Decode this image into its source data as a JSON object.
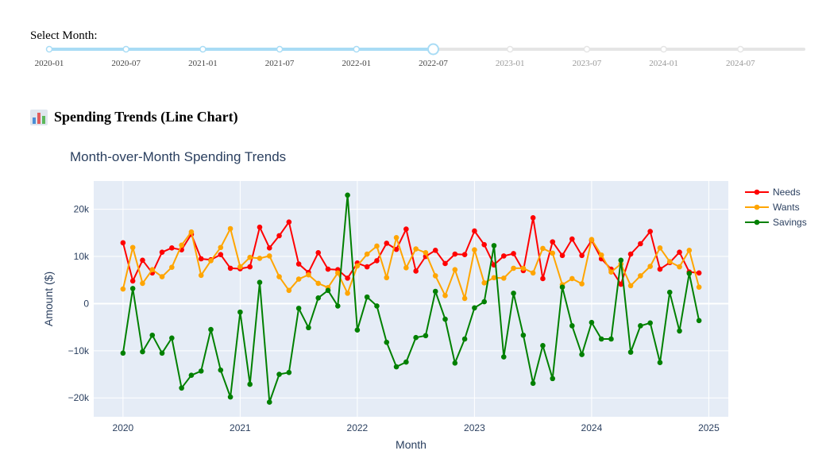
{
  "slider": {
    "label": "Select Month:",
    "marks": [
      "2020-01",
      "2020-07",
      "2021-01",
      "2021-07",
      "2022-01",
      "2022-07",
      "2023-01",
      "2023-07",
      "2024-01",
      "2024-07"
    ],
    "selected_index": 5,
    "active_color": "#a9dcf5",
    "inactive_color": "#e5e5e5"
  },
  "section": {
    "icon": "bar-chart-icon",
    "title": "Spending Trends (Line Chart)"
  },
  "chart_data": {
    "type": "line",
    "title": "Month-over-Month Spending Trends",
    "xlabel": "Month",
    "ylabel": "Amount ($)",
    "x_ticks": [
      "2020",
      "2021",
      "2022",
      "2023",
      "2024",
      "2025"
    ],
    "y_ticks": [
      "−20k",
      "−10k",
      "0",
      "10k",
      "20k"
    ],
    "ylim": [
      -24000,
      26000
    ],
    "xlim": [
      "2019-10",
      "2025-03"
    ],
    "grid": true,
    "legend_position": "right",
    "x": [
      "2020-01",
      "2020-02",
      "2020-03",
      "2020-04",
      "2020-05",
      "2020-06",
      "2020-07",
      "2020-08",
      "2020-09",
      "2020-10",
      "2020-11",
      "2020-12",
      "2021-01",
      "2021-02",
      "2021-03",
      "2021-04",
      "2021-05",
      "2021-06",
      "2021-07",
      "2021-08",
      "2021-09",
      "2021-10",
      "2021-11",
      "2021-12",
      "2022-01",
      "2022-02",
      "2022-03",
      "2022-04",
      "2022-05",
      "2022-06",
      "2022-07",
      "2022-08",
      "2022-09",
      "2022-10",
      "2022-11",
      "2022-12",
      "2023-01",
      "2023-02",
      "2023-03",
      "2023-04",
      "2023-05",
      "2023-06",
      "2023-07",
      "2023-08",
      "2023-09",
      "2023-10",
      "2023-11",
      "2023-12",
      "2024-01",
      "2024-02",
      "2024-03",
      "2024-04",
      "2024-05",
      "2024-06",
      "2024-07",
      "2024-08",
      "2024-09",
      "2024-10",
      "2024-11",
      "2024-12"
    ],
    "series": [
      {
        "name": "Needs",
        "color": "#ff0000",
        "values": [
          12900,
          4800,
          9200,
          6500,
          10900,
          11800,
          11400,
          14700,
          9500,
          9300,
          10400,
          7500,
          7400,
          7800,
          16200,
          11800,
          14400,
          17300,
          8400,
          6600,
          10800,
          7300,
          7200,
          5400,
          8600,
          7800,
          9100,
          12800,
          11500,
          15800,
          6900,
          10000,
          11300,
          8500,
          10500,
          10400,
          15400,
          12500,
          8200,
          10100,
          10600,
          7000,
          18200,
          5300,
          13100,
          10200,
          13700,
          10200,
          13400,
          9500,
          7300,
          4100,
          10500,
          12700,
          15300,
          7300,
          8700,
          10900,
          6700,
          6500
        ]
      },
      {
        "name": "Wants",
        "color": "#ffa500",
        "values": [
          3100,
          11900,
          4300,
          7200,
          5700,
          7700,
          12400,
          15200,
          6000,
          9100,
          11900,
          15900,
          7800,
          9800,
          9600,
          10100,
          5700,
          2800,
          5200,
          6100,
          4300,
          3400,
          6500,
          2200,
          8000,
          10500,
          12200,
          5500,
          14000,
          7600,
          11600,
          10800,
          5900,
          1700,
          7200,
          1100,
          11400,
          4400,
          5500,
          5400,
          7500,
          7500,
          6500,
          11700,
          10700,
          4000,
          5300,
          4200,
          13600,
          10300,
          6700,
          8400,
          3800,
          5900,
          7900,
          11800,
          8900,
          7800,
          11300,
          3500
        ]
      },
      {
        "name": "Savings",
        "color": "#008000",
        "values": [
          -10500,
          3200,
          -10200,
          -6700,
          -10500,
          -7300,
          -17900,
          -15200,
          -14300,
          -5500,
          -14100,
          -19800,
          -1800,
          -17100,
          4500,
          -20900,
          -15000,
          -14600,
          -1000,
          -5100,
          1200,
          2800,
          -500,
          23000,
          -5600,
          1400,
          -500,
          -8200,
          -13400,
          -12400,
          -7200,
          -6800,
          2600,
          -3300,
          -12600,
          -7500,
          -900,
          400,
          12300,
          -11300,
          2200,
          -6700,
          -16900,
          -8900,
          -15900,
          3500,
          -4700,
          -10800,
          -4000,
          -7500,
          -7500,
          9200,
          -10300,
          -4700,
          -4100,
          -12500,
          2400,
          -5800,
          6400,
          -3600
        ]
      }
    ]
  }
}
